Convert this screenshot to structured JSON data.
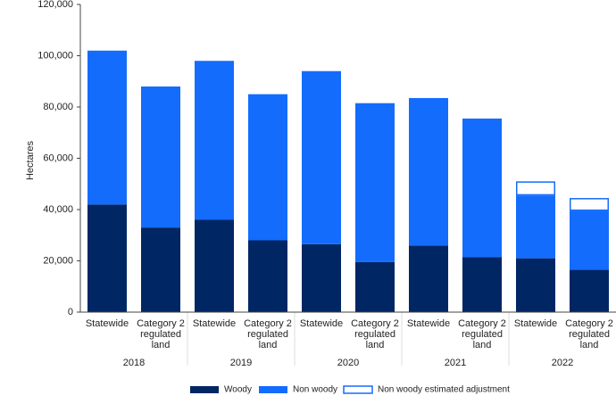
{
  "chart_data": {
    "type": "stacked-bar",
    "y_label": "Hectares",
    "categories": [
      "Statewide",
      "Category 2 regulated land",
      "Statewide",
      "Category 2 regulated land",
      "Statewide",
      "Category 2 regulated land",
      "Statewide",
      "Category 2 regulated land",
      "Statewide",
      "Category 2 regulated land"
    ],
    "groups": [
      "2018",
      "2019",
      "2020",
      "2021",
      "2022"
    ],
    "series": [
      {
        "name": "Woody",
        "color": "#002664",
        "values": [
          42000,
          33000,
          36000,
          28000,
          26500,
          19500,
          26000,
          21500,
          21000,
          16500
        ]
      },
      {
        "name": "Non woody",
        "color": "#146cfd",
        "values": [
          60000,
          55000,
          62000,
          57000,
          67500,
          62000,
          57500,
          54000,
          24500,
          23000
        ]
      },
      {
        "name": "Non woody estimated adjustment",
        "color": "#146cfd",
        "outline": true,
        "values": [
          null,
          null,
          null,
          null,
          null,
          null,
          null,
          null,
          5500,
          5000
        ]
      }
    ],
    "ylim": [
      0,
      120000
    ],
    "yticks": [
      0,
      {
        "value": 20000,
        "label": "20,000"
      },
      {
        "value": 40000,
        "label": "40,000"
      },
      {
        "value": 60000,
        "label": "60,000"
      },
      {
        "value": 80000,
        "label": "80,000"
      },
      {
        "value": 100000,
        "label": "100,000"
      },
      {
        "value": 120000,
        "label": "120,000"
      }
    ]
  }
}
